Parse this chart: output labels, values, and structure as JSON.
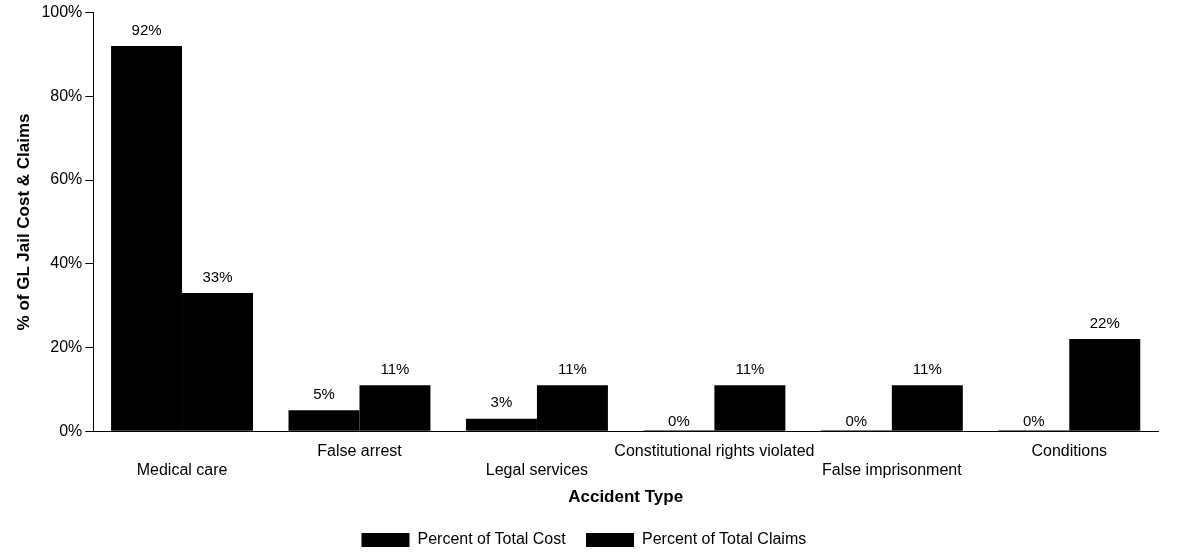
{
  "chart_data": {
    "type": "bar",
    "xlabel": "Accident Type",
    "ylabel": "% of GL Jail Cost & Claims",
    "categories": [
      "Medical care",
      "False arrest",
      "Legal services",
      "Constitutional rights violated",
      "False imprisonment",
      "Conditions"
    ],
    "series": [
      {
        "name": "Percent of Total Cost",
        "color": "#000000",
        "values": [
          92,
          5,
          3,
          0,
          0,
          0
        ],
        "value_labels": [
          "92%",
          "5%",
          "3%",
          "0%",
          "0%",
          "0%"
        ]
      },
      {
        "name": "Percent of Total Claims",
        "color": "#000000",
        "values": [
          33,
          11,
          11,
          11,
          11,
          22
        ],
        "value_labels": [
          "33%",
          "11%",
          "11%",
          "11%",
          "11%",
          "22%"
        ]
      }
    ],
    "ylim": [
      0,
      100
    ],
    "yticks": [
      {
        "value": 0,
        "label": "0%"
      },
      {
        "value": 20,
        "label": "20%"
      },
      {
        "value": 40,
        "label": "40%"
      },
      {
        "value": 60,
        "label": "60%"
      },
      {
        "value": 80,
        "label": "80%"
      },
      {
        "value": 100,
        "label": "100%"
      }
    ],
    "grid": false,
    "legend": "bottom"
  }
}
